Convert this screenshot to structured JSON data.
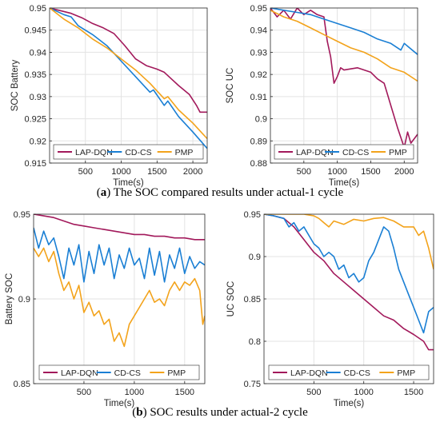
{
  "colors": {
    "LAP-DQN": "#a2195b",
    "CD-CS": "#1a7fd4",
    "PMP": "#f3a31b"
  },
  "captions": {
    "a": {
      "label": "a",
      "text": "The SOC compared results under actual-1 cycle"
    },
    "b": {
      "label": "b",
      "text": "SOC results under actual-2 cycle"
    }
  },
  "chart_data": [
    {
      "type": "line",
      "ylabel": "SOC Battery",
      "xlabel": "Time(s)",
      "xlim": [
        0,
        2200
      ],
      "ylim": [
        0.915,
        0.95
      ],
      "xticks": [
        500,
        1000,
        1500,
        2000
      ],
      "xtick_labels": [
        "500",
        "1000",
        "1500",
        "2000"
      ],
      "yticks": [
        0.915,
        0.92,
        0.925,
        0.93,
        0.935,
        0.94,
        0.945,
        0.95
      ],
      "ytick_labels": [
        "0.915",
        "0.92",
        "0.925",
        "0.93",
        "0.935",
        "0.94",
        "0.945",
        "0.95"
      ],
      "grid": true,
      "legend_position": "bottom",
      "series": [
        {
          "name": "LAP-DQN",
          "x": [
            0,
            150,
            300,
            450,
            600,
            750,
            900,
            1050,
            1200,
            1350,
            1500,
            1600,
            1700,
            1800,
            1950,
            2050,
            2100,
            2200
          ],
          "y": [
            0.95,
            0.9494,
            0.9488,
            0.9478,
            0.9465,
            0.9455,
            0.9442,
            0.9415,
            0.9385,
            0.937,
            0.9362,
            0.9355,
            0.934,
            0.9325,
            0.9305,
            0.928,
            0.9265,
            0.9265
          ]
        },
        {
          "name": "CD-CS",
          "x": [
            0,
            200,
            300,
            400,
            600,
            800,
            1000,
            1200,
            1400,
            1450,
            1600,
            1650,
            1800,
            2000,
            2200
          ],
          "y": [
            0.95,
            0.9485,
            0.948,
            0.946,
            0.944,
            0.9415,
            0.938,
            0.9345,
            0.931,
            0.9315,
            0.928,
            0.929,
            0.9255,
            0.922,
            0.9183
          ]
        },
        {
          "name": "PMP",
          "x": [
            0,
            200,
            400,
            600,
            800,
            1000,
            1200,
            1400,
            1600,
            1650,
            1800,
            2000,
            2200
          ],
          "y": [
            0.95,
            0.9475,
            0.9455,
            0.943,
            0.941,
            0.9385,
            0.936,
            0.933,
            0.9295,
            0.93,
            0.927,
            0.924,
            0.9205
          ]
        }
      ]
    },
    {
      "type": "line",
      "ylabel": "SOC UC",
      "xlabel": "Time(s)",
      "xlim": [
        0,
        2200
      ],
      "ylim": [
        0.88,
        0.95
      ],
      "xticks": [
        500,
        1000,
        1500,
        2000
      ],
      "xtick_labels": [
        "500",
        "1000",
        "1500",
        "2000"
      ],
      "yticks": [
        0.88,
        0.89,
        0.9,
        0.91,
        0.92,
        0.93,
        0.94,
        0.95
      ],
      "ytick_labels": [
        "0.88",
        "0.89",
        "0.9",
        "0.91",
        "0.92",
        "0.93",
        "0.94",
        "0.95"
      ],
      "grid": true,
      "legend_position": "bottom",
      "series": [
        {
          "name": "LAP-DQN",
          "x": [
            0,
            100,
            200,
            300,
            400,
            500,
            600,
            700,
            800,
            850,
            900,
            950,
            1000,
            1050,
            1100,
            1300,
            1500,
            1600,
            1700,
            1750,
            1800,
            1900,
            2000,
            2050,
            2100,
            2200
          ],
          "y": [
            0.95,
            0.946,
            0.949,
            0.945,
            0.95,
            0.947,
            0.949,
            0.947,
            0.946,
            0.935,
            0.928,
            0.916,
            0.919,
            0.923,
            0.922,
            0.923,
            0.921,
            0.918,
            0.916,
            0.911,
            0.906,
            0.896,
            0.887,
            0.894,
            0.889,
            0.893
          ]
        },
        {
          "name": "CD-CS",
          "x": [
            0,
            200,
            400,
            600,
            800,
            1000,
            1200,
            1400,
            1600,
            1800,
            1950,
            2000,
            2200
          ],
          "y": [
            0.95,
            0.949,
            0.948,
            0.947,
            0.945,
            0.943,
            0.941,
            0.939,
            0.936,
            0.934,
            0.931,
            0.934,
            0.929
          ]
        },
        {
          "name": "PMP",
          "x": [
            0,
            200,
            400,
            600,
            800,
            1000,
            1200,
            1400,
            1600,
            1800,
            2000,
            2200
          ],
          "y": [
            0.949,
            0.946,
            0.944,
            0.941,
            0.938,
            0.935,
            0.932,
            0.93,
            0.927,
            0.923,
            0.921,
            0.917
          ]
        }
      ]
    },
    {
      "type": "line",
      "ylabel": "Battery SOC",
      "xlabel": "Time(s)",
      "xlim": [
        0,
        1700
      ],
      "ylim": [
        0.85,
        0.95
      ],
      "xticks": [
        500,
        1000,
        1500
      ],
      "xtick_labels": [
        "500",
        "1000",
        "1500"
      ],
      "yticks": [
        0.85,
        0.9,
        0.95
      ],
      "ytick_labels": [
        "0.85",
        "0.9",
        "0.95"
      ],
      "grid": true,
      "legend_position": "bottom",
      "series": [
        {
          "name": "LAP-DQN",
          "x": [
            0,
            100,
            200,
            300,
            400,
            500,
            600,
            700,
            800,
            900,
            1000,
            1100,
            1200,
            1300,
            1400,
            1500,
            1600,
            1700
          ],
          "y": [
            0.95,
            0.949,
            0.948,
            0.946,
            0.944,
            0.943,
            0.942,
            0.941,
            0.94,
            0.939,
            0.938,
            0.938,
            0.937,
            0.937,
            0.936,
            0.936,
            0.935,
            0.935
          ]
        },
        {
          "name": "CD-CS",
          "x": [
            0,
            50,
            100,
            150,
            200,
            250,
            300,
            350,
            400,
            450,
            500,
            550,
            600,
            650,
            700,
            750,
            800,
            850,
            900,
            950,
            1000,
            1050,
            1100,
            1150,
            1200,
            1250,
            1300,
            1350,
            1400,
            1450,
            1500,
            1550,
            1600,
            1650,
            1700
          ],
          "y": [
            0.942,
            0.93,
            0.94,
            0.932,
            0.936,
            0.925,
            0.912,
            0.93,
            0.92,
            0.932,
            0.91,
            0.928,
            0.915,
            0.932,
            0.92,
            0.93,
            0.912,
            0.926,
            0.918,
            0.93,
            0.92,
            0.924,
            0.912,
            0.93,
            0.914,
            0.928,
            0.91,
            0.926,
            0.918,
            0.93,
            0.915,
            0.925,
            0.918,
            0.922,
            0.92
          ]
        },
        {
          "name": "PMP",
          "x": [
            0,
            50,
            100,
            150,
            200,
            250,
            300,
            350,
            400,
            450,
            500,
            550,
            600,
            650,
            700,
            750,
            800,
            850,
            900,
            950,
            1000,
            1050,
            1100,
            1150,
            1200,
            1250,
            1300,
            1350,
            1400,
            1450,
            1500,
            1550,
            1600,
            1650,
            1680,
            1700
          ],
          "y": [
            0.93,
            0.925,
            0.93,
            0.922,
            0.928,
            0.915,
            0.905,
            0.91,
            0.9,
            0.908,
            0.892,
            0.898,
            0.89,
            0.893,
            0.885,
            0.888,
            0.875,
            0.88,
            0.872,
            0.885,
            0.89,
            0.895,
            0.9,
            0.905,
            0.898,
            0.9,
            0.896,
            0.905,
            0.91,
            0.905,
            0.91,
            0.908,
            0.912,
            0.905,
            0.885,
            0.89
          ]
        }
      ]
    },
    {
      "type": "line",
      "ylabel": "UC SOC",
      "xlabel": "Time(s)",
      "xlim": [
        0,
        1700
      ],
      "ylim": [
        0.75,
        0.95
      ],
      "xticks": [
        500,
        1000,
        1500
      ],
      "xtick_labels": [
        "500",
        "1000",
        "1500"
      ],
      "yticks": [
        0.75,
        0.8,
        0.85,
        0.9,
        0.95
      ],
      "ytick_labels": [
        "0.75",
        "0.8",
        "0.85",
        "0.9",
        "0.95"
      ],
      "grid": true,
      "legend_position": "bottom",
      "series": [
        {
          "name": "LAP-DQN",
          "x": [
            0,
            100,
            200,
            300,
            400,
            500,
            600,
            700,
            800,
            900,
            1000,
            1100,
            1200,
            1300,
            1400,
            1500,
            1600,
            1650,
            1700
          ],
          "y": [
            0.95,
            0.948,
            0.945,
            0.935,
            0.92,
            0.905,
            0.895,
            0.88,
            0.87,
            0.86,
            0.85,
            0.84,
            0.83,
            0.825,
            0.815,
            0.808,
            0.8,
            0.79,
            0.79
          ]
        },
        {
          "name": "CD-CS",
          "x": [
            0,
            100,
            200,
            250,
            300,
            350,
            400,
            450,
            500,
            550,
            600,
            650,
            700,
            750,
            800,
            850,
            900,
            950,
            1000,
            1050,
            1100,
            1150,
            1200,
            1250,
            1300,
            1350,
            1400,
            1450,
            1500,
            1550,
            1600,
            1650,
            1700
          ],
          "y": [
            0.95,
            0.948,
            0.945,
            0.935,
            0.94,
            0.93,
            0.935,
            0.925,
            0.915,
            0.91,
            0.9,
            0.905,
            0.9,
            0.885,
            0.89,
            0.875,
            0.88,
            0.87,
            0.875,
            0.895,
            0.905,
            0.92,
            0.935,
            0.93,
            0.91,
            0.885,
            0.87,
            0.855,
            0.84,
            0.825,
            0.81,
            0.835,
            0.84
          ]
        },
        {
          "name": "PMP",
          "x": [
            0,
            200,
            400,
            500,
            550,
            600,
            650,
            700,
            800,
            900,
            1000,
            1100,
            1200,
            1300,
            1400,
            1500,
            1550,
            1600,
            1650,
            1700
          ],
          "y": [
            0.95,
            0.95,
            0.95,
            0.948,
            0.945,
            0.94,
            0.935,
            0.942,
            0.938,
            0.944,
            0.942,
            0.945,
            0.946,
            0.942,
            0.935,
            0.935,
            0.925,
            0.93,
            0.91,
            0.885
          ]
        }
      ]
    }
  ]
}
